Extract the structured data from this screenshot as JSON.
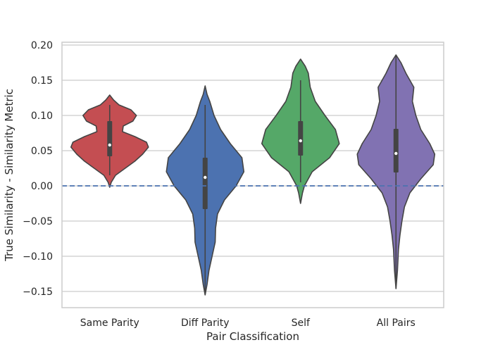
{
  "chart_data": {
    "type": "violin",
    "title": "",
    "xlabel": "Pair Classification",
    "ylabel": "True Similarity - Similarity Metric",
    "ylim": [
      -0.173,
      0.204
    ],
    "yticks": [
      0.2,
      0.15,
      0.1,
      0.05,
      0.0,
      -0.05,
      -0.1,
      -0.15
    ],
    "ytick_labels": [
      "0.20",
      "0.15",
      "0.10",
      "0.05",
      "0.00",
      "−0.05",
      "−0.10",
      "−0.15"
    ],
    "grid": "horizontal",
    "reference_line": {
      "y": 0.0,
      "style": "dashed",
      "color": "#4c72b0"
    },
    "categories": [
      "Same Parity",
      "Diff Parity",
      "Self",
      "All Pairs"
    ],
    "violins": [
      {
        "category": "Same Parity",
        "color": "#c44e52",
        "min": -0.002,
        "max": 0.129,
        "q1": 0.042,
        "median": 0.058,
        "q3": 0.092,
        "whisker_low": 0.015,
        "whisker_high": 0.115,
        "density": [
          [
            -0.002,
            0.0
          ],
          [
            0.005,
            0.04
          ],
          [
            0.015,
            0.15
          ],
          [
            0.025,
            0.4
          ],
          [
            0.035,
            0.65
          ],
          [
            0.045,
            0.85
          ],
          [
            0.055,
            1.0
          ],
          [
            0.062,
            0.95
          ],
          [
            0.07,
            0.65
          ],
          [
            0.077,
            0.33
          ],
          [
            0.085,
            0.35
          ],
          [
            0.092,
            0.6
          ],
          [
            0.1,
            0.69
          ],
          [
            0.108,
            0.55
          ],
          [
            0.115,
            0.24
          ],
          [
            0.122,
            0.1
          ],
          [
            0.129,
            0.0
          ]
        ]
      },
      {
        "category": "Diff Parity",
        "color": "#4c72b0",
        "min": -0.155,
        "max": 0.142,
        "q1": -0.033,
        "median": 0.012,
        "q3": 0.04,
        "whisker_low": -0.155,
        "whisker_high": 0.115,
        "density": [
          [
            -0.155,
            0.0
          ],
          [
            -0.14,
            0.05
          ],
          [
            -0.12,
            0.1
          ],
          [
            -0.1,
            0.18
          ],
          [
            -0.08,
            0.26
          ],
          [
            -0.06,
            0.27
          ],
          [
            -0.04,
            0.32
          ],
          [
            -0.02,
            0.5
          ],
          [
            0.0,
            0.8
          ],
          [
            0.02,
            1.0
          ],
          [
            0.04,
            0.95
          ],
          [
            0.06,
            0.65
          ],
          [
            0.08,
            0.4
          ],
          [
            0.1,
            0.23
          ],
          [
            0.12,
            0.12
          ],
          [
            0.13,
            0.05
          ],
          [
            0.142,
            0.0
          ]
        ]
      },
      {
        "category": "Self",
        "color": "#55a868",
        "min": -0.025,
        "max": 0.18,
        "q1": 0.043,
        "median": 0.064,
        "q3": 0.092,
        "whisker_low": 0.005,
        "whisker_high": 0.15,
        "density": [
          [
            -0.025,
            0.0
          ],
          [
            -0.01,
            0.05
          ],
          [
            0.0,
            0.1
          ],
          [
            0.02,
            0.3
          ],
          [
            0.04,
            0.75
          ],
          [
            0.06,
            1.0
          ],
          [
            0.08,
            0.9
          ],
          [
            0.1,
            0.63
          ],
          [
            0.12,
            0.38
          ],
          [
            0.14,
            0.25
          ],
          [
            0.16,
            0.2
          ],
          [
            0.17,
            0.12
          ],
          [
            0.18,
            0.0
          ]
        ]
      },
      {
        "category": "All Pairs",
        "color": "#8172b2",
        "min": -0.146,
        "max": 0.186,
        "q1": 0.019,
        "median": 0.046,
        "q3": 0.081,
        "whisker_low": -0.146,
        "whisker_high": 0.186,
        "density": [
          [
            -0.146,
            0.0
          ],
          [
            -0.12,
            0.03
          ],
          [
            -0.09,
            0.05
          ],
          [
            -0.07,
            0.08
          ],
          [
            -0.05,
            0.12
          ],
          [
            -0.03,
            0.17
          ],
          [
            -0.01,
            0.28
          ],
          [
            0.01,
            0.5
          ],
          [
            0.03,
            0.75
          ],
          [
            0.045,
            0.78
          ],
          [
            0.06,
            0.68
          ],
          [
            0.08,
            0.5
          ],
          [
            0.1,
            0.4
          ],
          [
            0.12,
            0.33
          ],
          [
            0.14,
            0.36
          ],
          [
            0.16,
            0.2
          ],
          [
            0.175,
            0.1
          ],
          [
            0.186,
            0.0
          ]
        ]
      }
    ]
  }
}
